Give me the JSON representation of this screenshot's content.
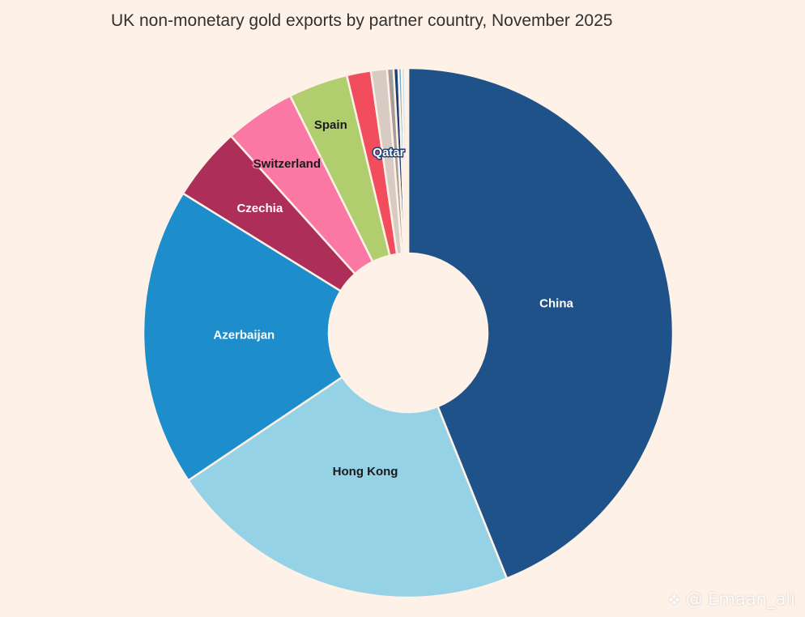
{
  "chart_data": {
    "type": "pie",
    "title": "UK non-monetary gold exports by partner country, November 2025",
    "values_unit": "share of total (%)",
    "slices": [
      {
        "label": "China",
        "value": 44.8,
        "color": "#1f5289",
        "text_color": "#ffffff"
      },
      {
        "label": "Hong Kong",
        "value": 22.1,
        "color": "#96d2e6",
        "text_color": "#1a1a1a"
      },
      {
        "label": "Azerbaijan",
        "value": 18.6,
        "color": "#1e8dcb",
        "text_color": "#ffffff"
      },
      {
        "label": "Czechia",
        "value": 4.6,
        "color": "#ad2f59",
        "text_color": "#ffffff"
      },
      {
        "label": "Switzerland",
        "value": 4.4,
        "color": "#fb77a4",
        "text_color": "#1a1a1a"
      },
      {
        "label": "Spain",
        "value": 3.7,
        "color": "#b1ce6f",
        "text_color": "#1a1a1a"
      },
      {
        "label": "",
        "value": 1.5,
        "color": "#f24d5d",
        "text_color": "#ffffff"
      },
      {
        "label": "",
        "value": 1.0,
        "color": "#d8cbc3",
        "text_color": "#1a1a1a"
      },
      {
        "label": "",
        "value": 0.4,
        "color": "#a89e97",
        "text_color": "#1a1a1a"
      },
      {
        "label": "Qatar",
        "value": 0.3,
        "color": "#1d3f73",
        "text_color": "#ffffff"
      },
      {
        "label": "",
        "value": 0.2,
        "color": "#6fa9d9",
        "text_color": "#ffffff"
      },
      {
        "label": "",
        "value": 0.2,
        "color": "#c3e1ef",
        "text_color": "#1a1a1a"
      },
      {
        "label": "",
        "value": 0.1,
        "color": "#8a7f7a",
        "text_color": "#ffffff"
      },
      {
        "label": "",
        "value": 0.1,
        "color": "#e1b3a8",
        "text_color": "#1a1a1a"
      }
    ],
    "start_angle": "top (12 o'clock)",
    "direction": "clockwise",
    "legend": "none — labels drawn on slices",
    "background_color": "#fdf1e8"
  },
  "watermark": {
    "text": "@ Emaan_ali",
    "icon": "diamond-logo-icon"
  }
}
